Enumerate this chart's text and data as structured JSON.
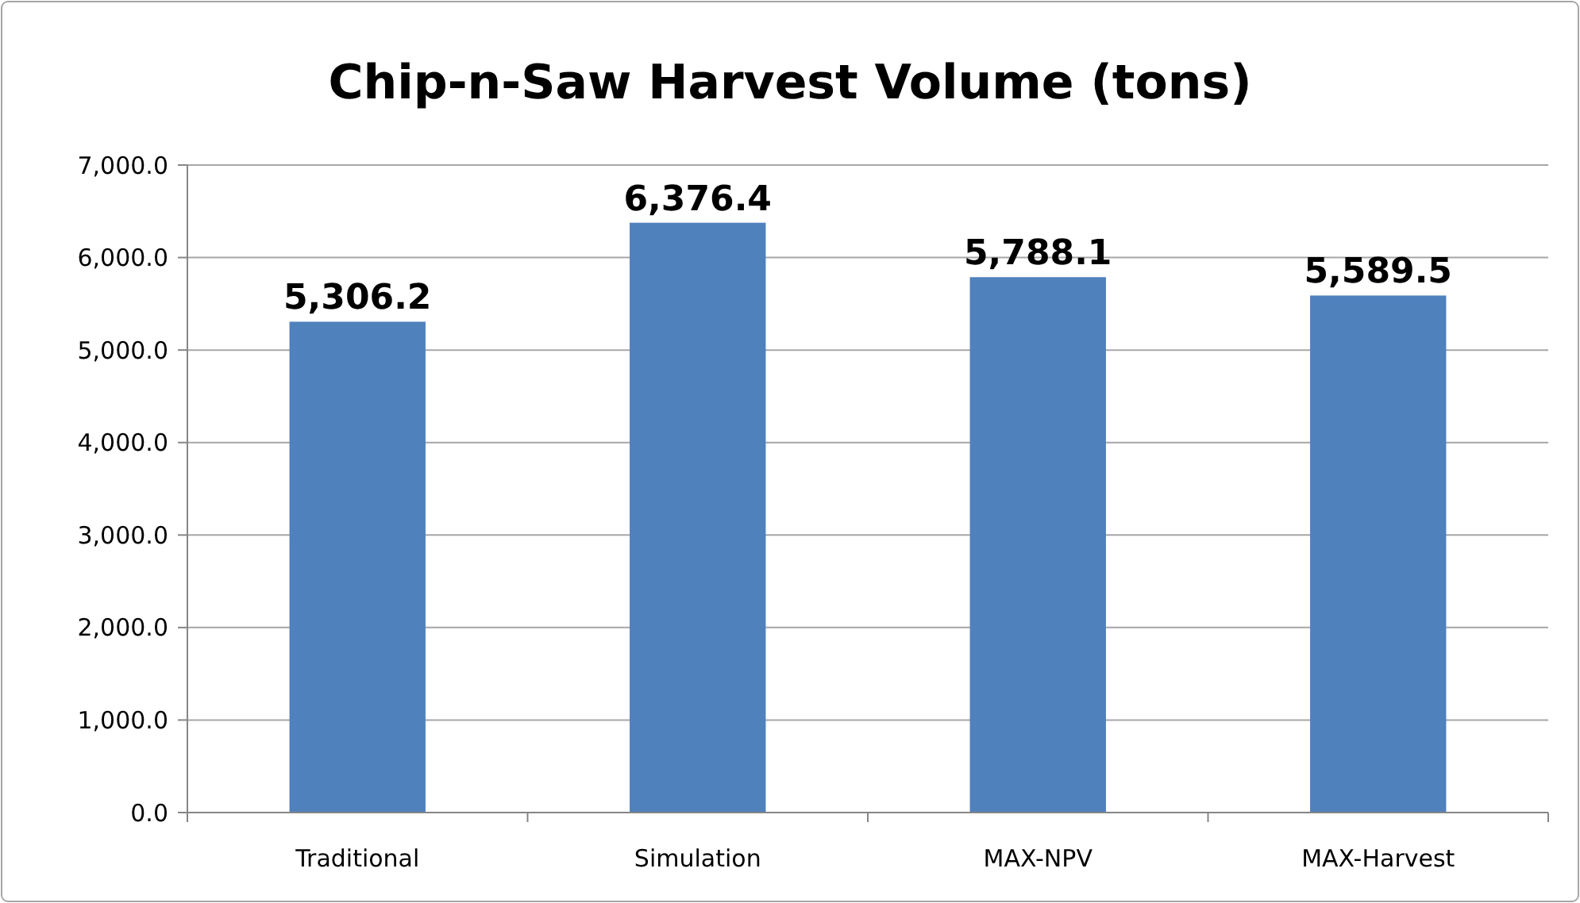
{
  "chart_data": {
    "type": "bar",
    "title": "Chip-n-Saw Harvest Volume (tons)",
    "categories": [
      "Traditional",
      "Simulation",
      "MAX-NPV",
      "MAX-Harvest"
    ],
    "values": [
      5306.2,
      6376.4,
      5788.1,
      5589.5
    ],
    "value_labels": [
      "5,306.2",
      "6,376.4",
      "5,788.1",
      "5,589.5"
    ],
    "color": "#4f81bd",
    "ylim": [
      0,
      7000
    ],
    "yticks": [
      {
        "value": 0,
        "label": "0.0"
      },
      {
        "value": 1000,
        "label": "1,000.0"
      },
      {
        "value": 2000,
        "label": "2,000.0"
      },
      {
        "value": 3000,
        "label": "3,000.0"
      },
      {
        "value": 4000,
        "label": "4,000.0"
      },
      {
        "value": 5000,
        "label": "5,000.0"
      },
      {
        "value": 6000,
        "label": "6,000.0"
      },
      {
        "value": 7000,
        "label": "7,000.0"
      }
    ],
    "grid": "y"
  }
}
